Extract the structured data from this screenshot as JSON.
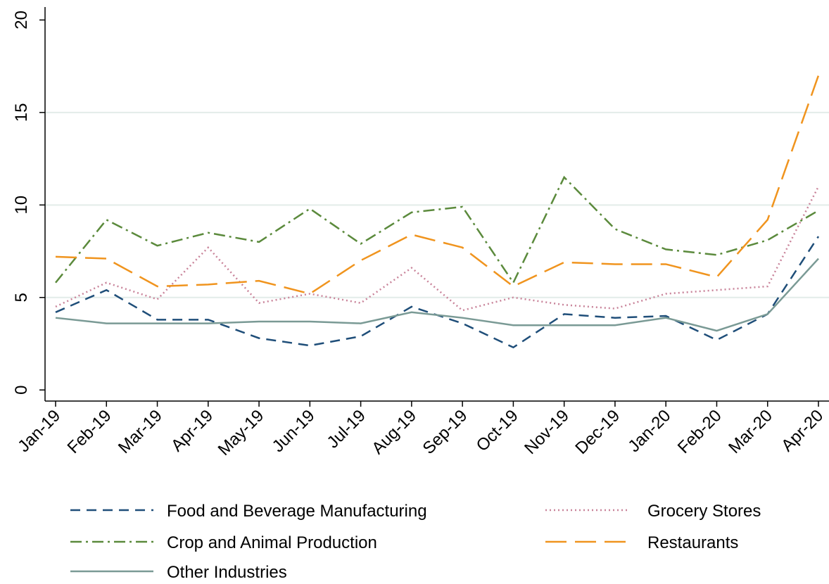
{
  "chart_data": {
    "type": "line",
    "categories": [
      "Jan-19",
      "Feb-19",
      "Mar-19",
      "Apr-19",
      "May-19",
      "Jun-19",
      "Jul-19",
      "Aug-19",
      "Sep-19",
      "Oct-19",
      "Nov-19",
      "Dec-19",
      "Jan-20",
      "Feb-20",
      "Mar-20",
      "Apr-20"
    ],
    "series": [
      {
        "name": "Food and Beverage Manufacturing",
        "color": "#1f4e79",
        "style": "dash",
        "values": [
          4.2,
          5.4,
          3.8,
          3.8,
          2.8,
          2.4,
          2.9,
          4.5,
          3.6,
          2.3,
          4.1,
          3.9,
          4.0,
          2.7,
          4.1,
          8.3
        ]
      },
      {
        "name": "Grocery Stores",
        "color": "#c9849a",
        "style": "dot",
        "values": [
          4.5,
          5.8,
          4.9,
          7.7,
          4.7,
          5.2,
          4.7,
          6.6,
          4.3,
          5.0,
          4.6,
          4.4,
          5.2,
          5.4,
          5.6,
          11.0
        ]
      },
      {
        "name": "Crop and Animal Production",
        "color": "#5b8a3c",
        "style": "dashdot",
        "values": [
          5.8,
          9.2,
          7.8,
          8.5,
          8.0,
          9.8,
          7.9,
          9.6,
          9.9,
          5.8,
          11.5,
          8.7,
          7.6,
          7.3,
          8.1,
          9.7
        ]
      },
      {
        "name": "Restaurants",
        "color": "#f0941e",
        "style": "longdash",
        "values": [
          7.2,
          7.1,
          5.6,
          5.7,
          5.9,
          5.2,
          7.0,
          8.4,
          7.7,
          5.6,
          6.9,
          6.8,
          6.8,
          6.1,
          9.2,
          17.0
        ]
      },
      {
        "name": "Other Industries",
        "color": "#7a9a95",
        "style": "solid",
        "values": [
          3.9,
          3.6,
          3.6,
          3.6,
          3.7,
          3.7,
          3.6,
          4.2,
          3.9,
          3.5,
          3.5,
          3.5,
          3.9,
          3.2,
          4.1,
          7.1
        ]
      }
    ],
    "ylim": [
      -0.6,
      20.7
    ],
    "yticks": [
      0,
      5,
      10,
      15,
      20
    ],
    "grid": true,
    "legend": "bottom"
  }
}
